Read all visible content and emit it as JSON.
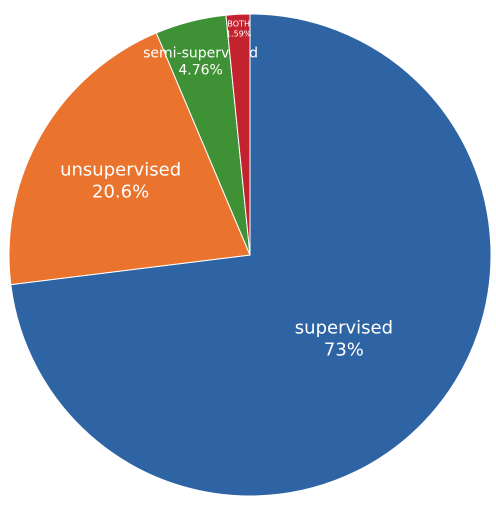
{
  "chart_data": {
    "type": "pie",
    "title": "",
    "categories": [
      "supervised",
      "unsupervised",
      "semi-supervised",
      "BOTH"
    ],
    "values": [
      73,
      20.6,
      4.76,
      1.59
    ],
    "percent_labels": [
      "73%",
      "20.6%",
      "4.76%",
      "1.59%"
    ],
    "colors": [
      "#2e64a3",
      "#ea742e",
      "#3e9135",
      "#c3232e"
    ],
    "start": "12 o'clock",
    "direction": "clockwise",
    "legend": "none"
  }
}
